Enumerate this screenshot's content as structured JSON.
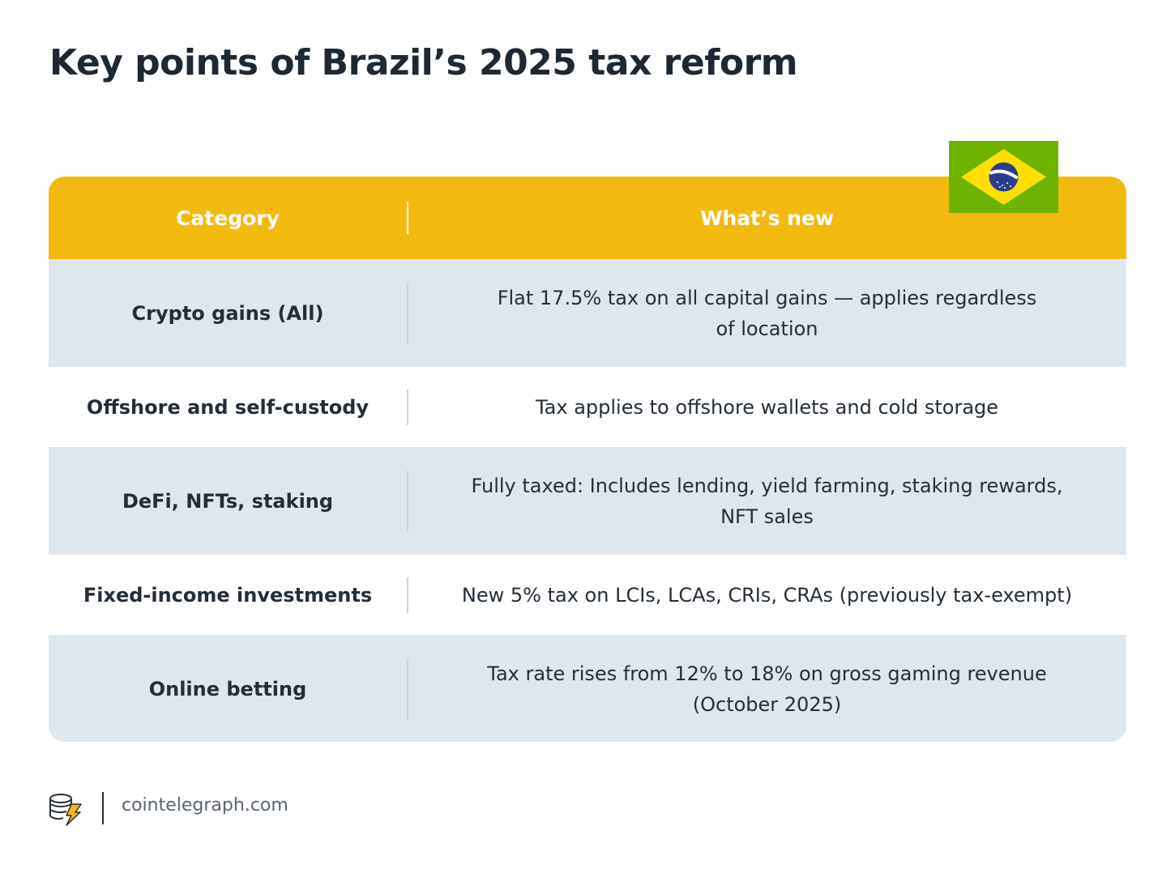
{
  "title": "Key points of Brazil’s 2025 tax reform",
  "table": {
    "headers": {
      "category": "Category",
      "whats_new": "What’s new"
    },
    "rows": [
      {
        "category": "Crypto gains (All)",
        "whats_new_lines": [
          "Flat 17.5% tax on all capital gains — applies regardless",
          "of location"
        ]
      },
      {
        "category": "Offshore and self-custody",
        "whats_new_lines": [
          "Tax applies to offshore wallets and cold storage"
        ]
      },
      {
        "category": "DeFi, NFTs, staking",
        "whats_new_lines": [
          "Fully taxed: Includes lending, yield farming, staking rewards,",
          "NFT sales"
        ]
      },
      {
        "category": "Fixed-income investments",
        "whats_new_lines": [
          "New 5% tax on LCIs, LCAs, CRIs, CRAs (previously tax-exempt)"
        ]
      },
      {
        "category": "Online betting",
        "whats_new_lines": [
          "Tax rate rises from 12% to 18% on gross gaming revenue",
          "(October 2025)"
        ]
      }
    ]
  },
  "flag": {
    "icon": "brazil-flag-icon",
    "colors": {
      "green": "#6db300",
      "yellow": "#ffdf00",
      "blue": "#2b3c8f",
      "white": "#ffffff"
    }
  },
  "footer": {
    "logo_icon": "cointelegraph-logo-icon",
    "site": "cointelegraph.com"
  },
  "colors": {
    "header_bg": "#f4b90f",
    "row_shaded_bg": "#dee7ed",
    "row_plain_bg": "#ffffff",
    "text": "#242e38"
  }
}
